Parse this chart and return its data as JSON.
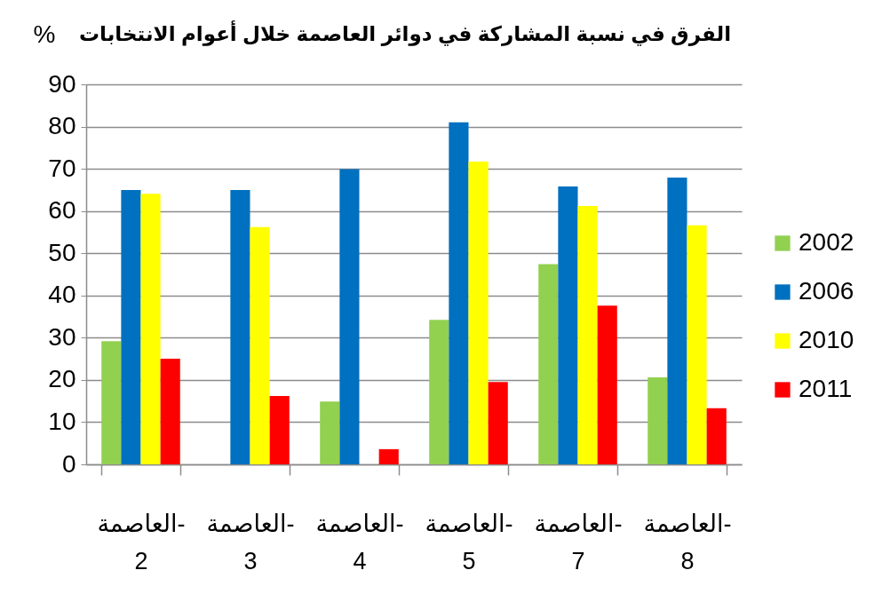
{
  "chart_data": {
    "type": "bar",
    "title": "الفرق في نسبة المشاركة في دوائر العاصمة خلال أعوام الانتخابات",
    "ylabel": "%",
    "categories": [
      "العاصمة- 2",
      "العاصمة- 3",
      "العاصمة- 4",
      "العاصمة- 5",
      "العاصمة- 7",
      "العاصمة- 8"
    ],
    "series": [
      {
        "name": "2002",
        "color": "#92d050",
        "values": [
          29.2,
          null,
          14.9,
          34.2,
          47.4,
          20.6
        ]
      },
      {
        "name": "2006",
        "color": "#0070c0",
        "values": [
          65.0,
          65.0,
          69.9,
          81.0,
          65.8,
          67.9
        ]
      },
      {
        "name": "2010",
        "color": "#ffff00",
        "values": [
          64.1,
          56.2,
          null,
          71.7,
          61.2,
          56.6
        ]
      },
      {
        "name": "2011",
        "color": "#ff0000",
        "values": [
          25.0,
          16.2,
          3.6,
          19.5,
          37.6,
          13.3
        ]
      }
    ],
    "ylim": [
      0,
      90
    ],
    "yticks": [
      0,
      10,
      20,
      30,
      40,
      50,
      60,
      70,
      80,
      90
    ],
    "grid": "y",
    "legend": "right"
  }
}
